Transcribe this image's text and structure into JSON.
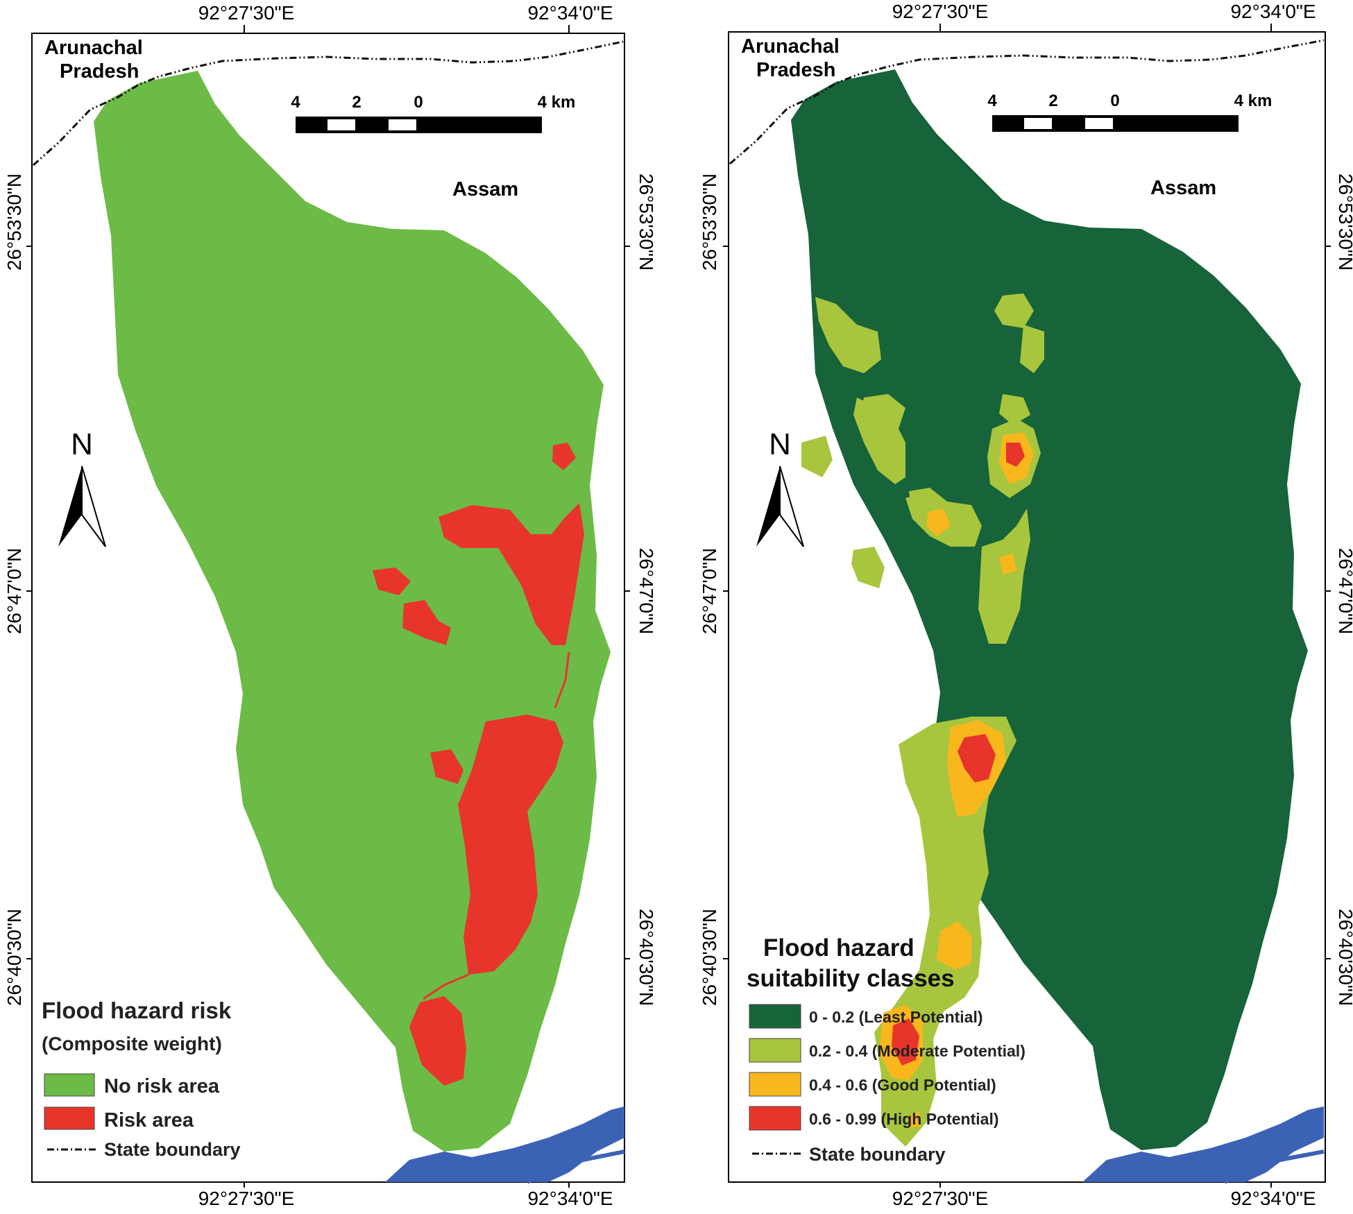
{
  "colors": {
    "no_risk": "#6cbb46",
    "risk": "#e8352b",
    "least": "#17633a",
    "moderate": "#a8c63d",
    "good": "#f9b71e",
    "high": "#e8352b",
    "river": "#3c62b5",
    "sand": "#b3b3b3"
  },
  "coords": {
    "lon_1": "92°27'30\"E",
    "lon_2": "92°34'0\"E",
    "lat_1": "26°53'30\"N",
    "lat_2": "26°47'0\"N",
    "lat_3": "26°40'30\"N"
  },
  "places": {
    "arunachal_line1": "Arunachal",
    "arunachal_line2": "Pradesh",
    "assam": "Assam"
  },
  "scale_bar": {
    "label_4": "4",
    "label_2": "2",
    "label_0": "0",
    "label_4km": "4 km"
  },
  "north_arrow": {
    "label": "N"
  },
  "left_map": {
    "legend_title": "Flood hazard risk",
    "legend_subtitle": "(Composite weight)",
    "items": [
      {
        "label": "No risk area"
      },
      {
        "label": "Risk area"
      }
    ],
    "boundary_label": "State boundary"
  },
  "right_map": {
    "legend_title_line1": "Flood hazard",
    "legend_title_line2": "suitability classes",
    "items": [
      {
        "label": "0 - 0.2 (Least Potential)"
      },
      {
        "label": "0.2 - 0.4 (Moderate Potential)"
      },
      {
        "label": "0.4 - 0.6 (Good Potential)"
      },
      {
        "label": "0.6 - 0.99 (High Potential)"
      }
    ],
    "boundary_label": "State boundary"
  }
}
